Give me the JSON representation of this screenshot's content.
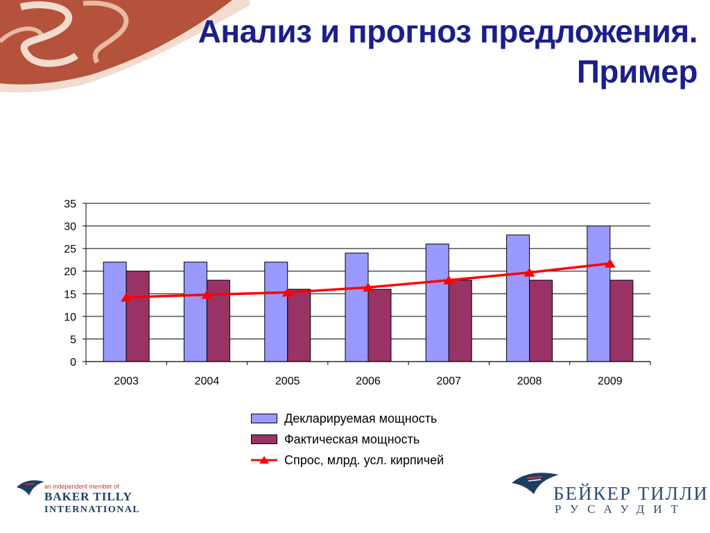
{
  "slide": {
    "title_line1": "Анализ и прогноз предложения.",
    "title_line2": "Пример"
  },
  "colors": {
    "title": "#1a1f8c",
    "declared": "#9999ff",
    "actual": "#993366",
    "demand": "#ff0000",
    "corner_art": "#b5523b"
  },
  "chart_data": {
    "type": "bar",
    "categories": [
      "2003",
      "2004",
      "2005",
      "2006",
      "2007",
      "2008",
      "2009"
    ],
    "series": [
      {
        "name": "Декларируемая мощность",
        "type": "bar",
        "values": [
          22,
          22,
          22,
          24,
          26,
          28,
          30
        ]
      },
      {
        "name": "Фактическая мощность",
        "type": "bar",
        "values": [
          20,
          18,
          16,
          16,
          18,
          18,
          18
        ]
      },
      {
        "name": "Спрос, млрд. усл. кирпичей",
        "type": "line",
        "marker": "triangle",
        "values": [
          14.2,
          14.8,
          15.3,
          16.4,
          18.0,
          19.7,
          21.7
        ]
      }
    ],
    "y_ticks": [
      "0",
      "5",
      "10",
      "15",
      "20",
      "25",
      "30",
      "35"
    ],
    "ylim": [
      0,
      35
    ],
    "grid": true,
    "legend_position": "bottom"
  },
  "logos": {
    "left_tagline": "an independent member of",
    "left_brand1": "BAKER TILLY",
    "left_brand2": "INTERNATIONAL",
    "right_brand1": "БЕЙКЕР ТИЛЛИ",
    "right_brand2": "РУСАУДИТ"
  }
}
